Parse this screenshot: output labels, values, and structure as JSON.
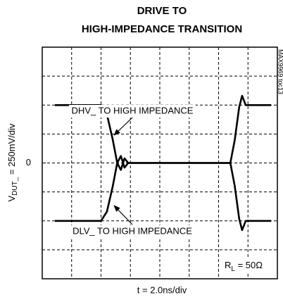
{
  "chart_data": {
    "type": "line",
    "title": [
      "DRIVE TO",
      "HIGH-IMPEDANCE TRANSITION"
    ],
    "ylabel": [
      "V",
      "DUT_",
      " = 250mV/div"
    ],
    "xlabel": "t = 2.0ns/div",
    "side_note": "MAX9969 toc13",
    "annotations": [
      "DHV_ TO HIGH IMPEDANCE",
      "DLV_ TO HIGH IMPEDANCE"
    ],
    "load_label": [
      "R",
      "L",
      " = 50Ω"
    ],
    "xlim": [
      0,
      16
    ],
    "ylim": [
      -1000,
      1000
    ],
    "yticks": [
      0
    ],
    "color": "#000000",
    "x": [
      0.86,
      4.0,
      4.4,
      4.8,
      5.1,
      5.35,
      5.6,
      5.85,
      6.2,
      12.8,
      13.1,
      13.4,
      13.6,
      13.85,
      14.2,
      15.57
    ],
    "series": [
      {
        "name": "DHV_",
        "values": [
          500,
          500,
          420,
          200,
          0,
          -60,
          40,
          0,
          0,
          0,
          200,
          480,
          580,
          500,
          500,
          500
        ]
      },
      {
        "name": "DLV_",
        "values": [
          -500,
          -500,
          -420,
          -200,
          0,
          60,
          -40,
          0,
          0,
          0,
          -200,
          -480,
          -580,
          -500,
          -500,
          -500
        ]
      }
    ]
  }
}
